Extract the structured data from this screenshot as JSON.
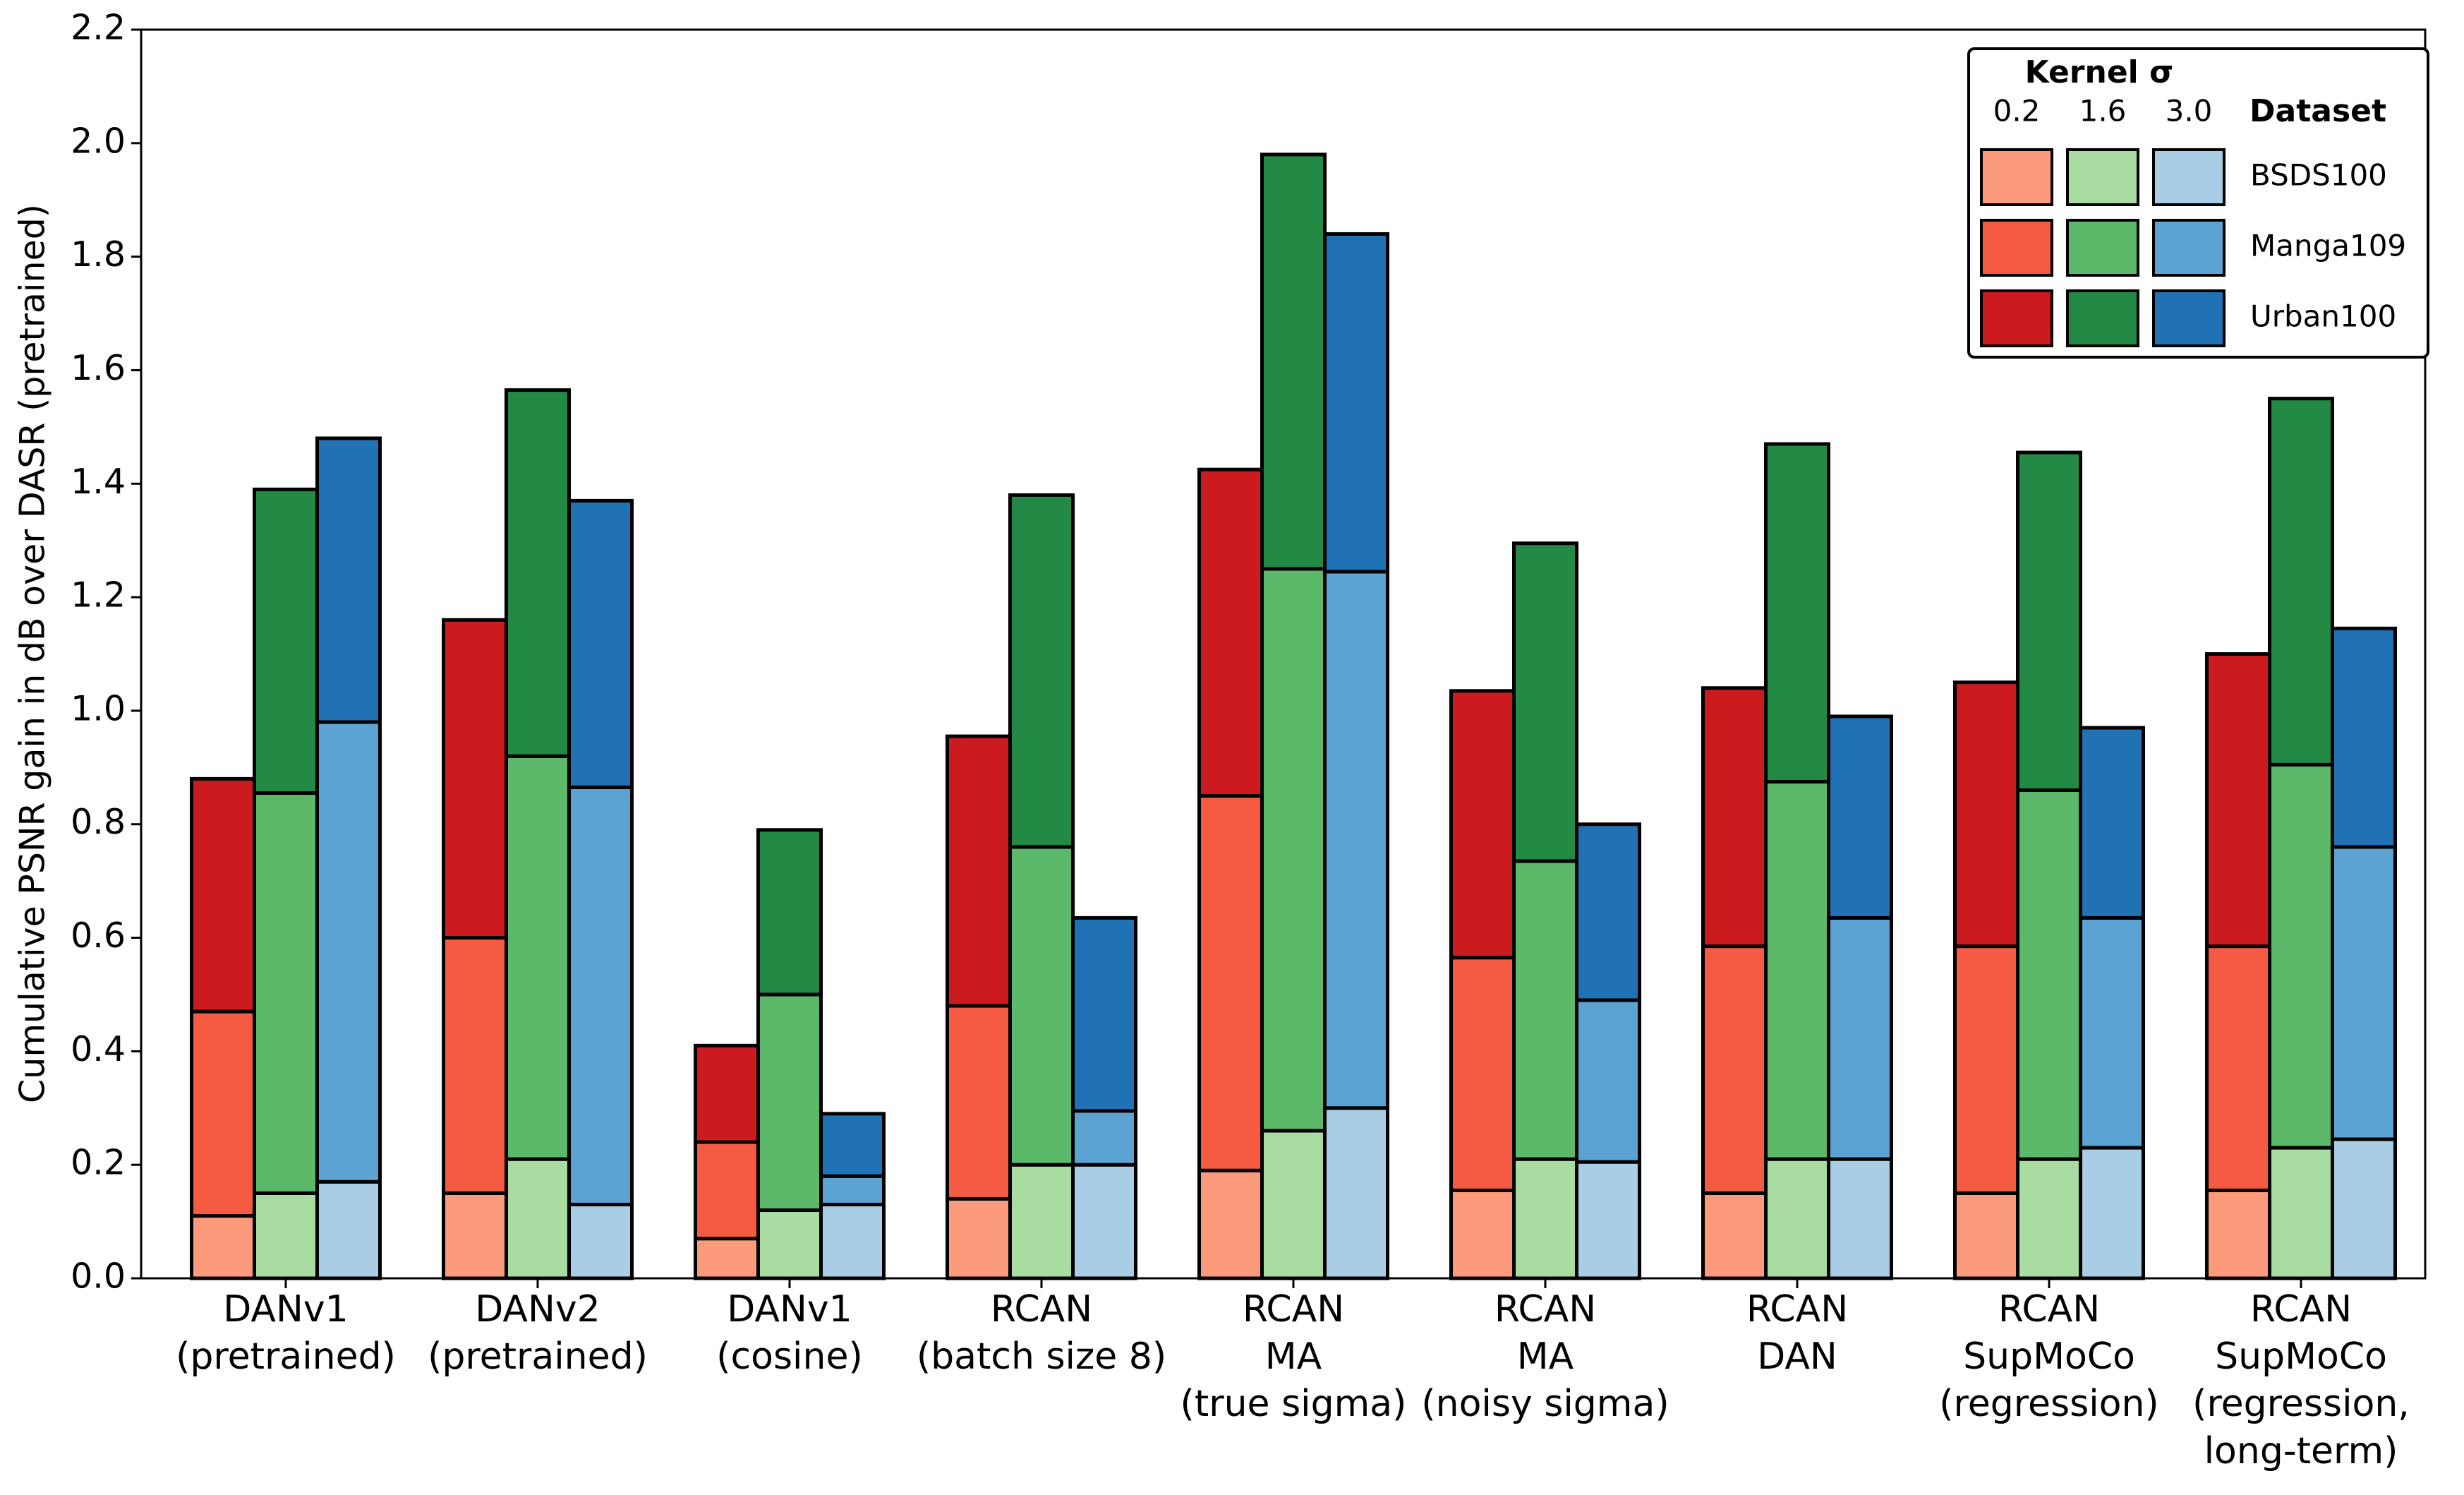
{
  "chart_data": {
    "type": "grouped-stacked-bar",
    "y_label": "Cumulative PSNR gain in dB over DASR (pretrained)",
    "categories": [
      [
        "DANv1",
        "(pretrained)"
      ],
      [
        "DANv2",
        "(pretrained)"
      ],
      [
        "DANv1",
        "(cosine)"
      ],
      [
        "RCAN",
        "(batch size 8)"
      ],
      [
        "RCAN",
        "MA",
        "(true sigma)"
      ],
      [
        "RCAN",
        "MA",
        "(noisy sigma)"
      ],
      [
        "RCAN",
        "DAN"
      ],
      [
        "RCAN",
        "SupMoCo",
        "(regression)"
      ],
      [
        "RCAN",
        "SupMoCo",
        "(regression,",
        "long-term)"
      ]
    ],
    "legend_title": "Kernel σ",
    "kernels": [
      "0.2",
      "1.6",
      "3.0"
    ],
    "legend_series_title": "Dataset",
    "legend_position": "upper right",
    "series": [
      {
        "name": "BSDS100",
        "colors": [
          "#fc9a7c",
          "#a8dca0",
          "#a8cde4"
        ],
        "values": [
          [
            0.11,
            0.15,
            0.17
          ],
          [
            0.15,
            0.21,
            0.13
          ],
          [
            0.07,
            0.12,
            0.13
          ],
          [
            0.14,
            0.2,
            0.2
          ],
          [
            0.19,
            0.26,
            0.3
          ],
          [
            0.155,
            0.21,
            0.205
          ],
          [
            0.15,
            0.21,
            0.21
          ],
          [
            0.15,
            0.21,
            0.23
          ],
          [
            0.155,
            0.23,
            0.245
          ]
        ]
      },
      {
        "name": "Manga109",
        "colors": [
          "#f45b42",
          "#5cb96a",
          "#5aa3d2"
        ],
        "values": [
          [
            0.36,
            0.705,
            0.81
          ],
          [
            0.45,
            0.71,
            0.735
          ],
          [
            0.17,
            0.38,
            0.05
          ],
          [
            0.34,
            0.56,
            0.095
          ],
          [
            0.66,
            0.99,
            0.945
          ],
          [
            0.41,
            0.525,
            0.285
          ],
          [
            0.435,
            0.665,
            0.425
          ],
          [
            0.435,
            0.65,
            0.405
          ],
          [
            0.43,
            0.675,
            0.515
          ]
        ]
      },
      {
        "name": "Urban100",
        "colors": [
          "#cb1b1e",
          "#238a45",
          "#2171b5"
        ],
        "values": [
          [
            0.41,
            0.535,
            0.5
          ],
          [
            0.56,
            0.645,
            0.505
          ],
          [
            0.17,
            0.29,
            0.11
          ],
          [
            0.475,
            0.62,
            0.34
          ],
          [
            0.575,
            0.73,
            0.595
          ],
          [
            0.47,
            0.56,
            0.31
          ],
          [
            0.455,
            0.595,
            0.355
          ],
          [
            0.465,
            0.595,
            0.335
          ],
          [
            0.515,
            0.645,
            0.385
          ]
        ]
      }
    ],
    "ylim": [
      0,
      2.2
    ],
    "yticks": [
      {
        "value": 0,
        "label": "0.0"
      },
      0.2,
      0.4,
      0.6,
      0.8,
      {
        "value": 1,
        "label": "1.0"
      },
      1.2,
      1.4,
      1.6,
      1.8,
      {
        "value": 2,
        "label": "2.0"
      },
      2.2
    ],
    "grid": false
  }
}
